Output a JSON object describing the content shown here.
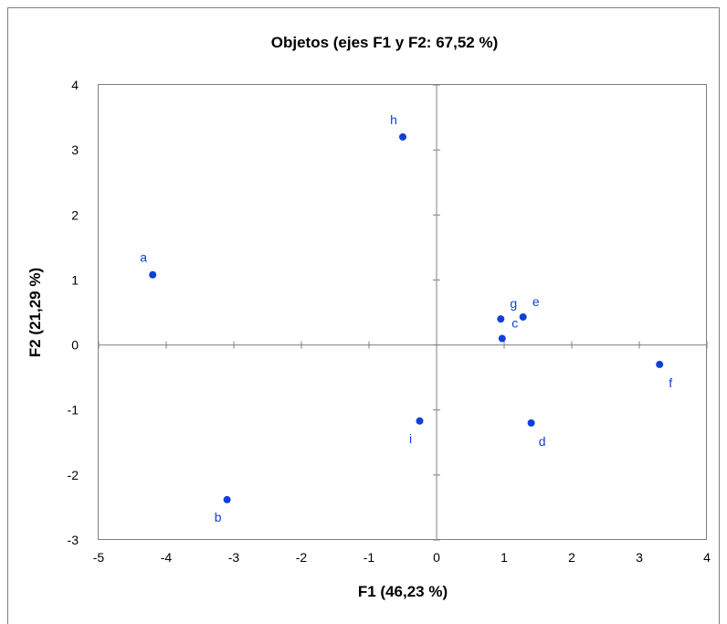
{
  "chart_data": {
    "type": "scatter",
    "title": "Objetos  (ejes F1 y F2: 67,52  %)",
    "xlabel": "F1 (46,23 %)",
    "ylabel": "F2 (21,29 %)",
    "xlim": [
      -5,
      4
    ],
    "ylim": [
      -3,
      4
    ],
    "xticks": [
      "-5",
      "-4",
      "-3",
      "-2",
      "-1",
      "0",
      "1",
      "2",
      "3",
      "4"
    ],
    "yticks": [
      "-3",
      "-2",
      "-1",
      "0",
      "1",
      "2",
      "3",
      "4"
    ],
    "grid": false,
    "legend": "none",
    "point_color": "#0f3fd6",
    "points": [
      {
        "label": "a",
        "x": -4.2,
        "y": 1.08,
        "label_pos": "above-left"
      },
      {
        "label": "b",
        "x": -3.1,
        "y": -2.38,
        "label_pos": "below-left"
      },
      {
        "label": "c",
        "x": 0.97,
        "y": 0.1,
        "label_pos": "above-right"
      },
      {
        "label": "d",
        "x": 1.4,
        "y": -1.2,
        "label_pos": "below-right"
      },
      {
        "label": "e",
        "x": 1.28,
        "y": 0.43,
        "label_pos": "above-right"
      },
      {
        "label": "f",
        "x": 3.3,
        "y": -0.3,
        "label_pos": "below-right"
      },
      {
        "label": "g",
        "x": 0.95,
        "y": 0.4,
        "label_pos": "above-right"
      },
      {
        "label": "h",
        "x": -0.5,
        "y": 3.2,
        "label_pos": "above-left"
      },
      {
        "label": "i",
        "x": -0.25,
        "y": -1.17,
        "label_pos": "below-left"
      }
    ]
  }
}
